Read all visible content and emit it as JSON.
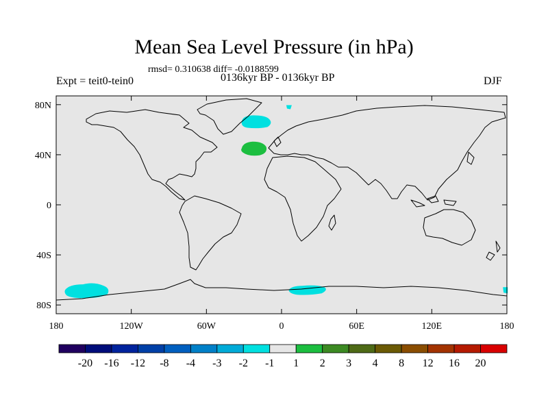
{
  "title": "Mean Sea Level Pressure (in hPa)",
  "stats": "rmsd= 0.310638 diff= -0.0188599",
  "left_label": "Expt = teit0-tein0",
  "center_label": "0136kyr BP - 0136kyr BP",
  "right_label": "DJF",
  "lat_ticks": [
    {
      "label": "80N",
      "lat": 80
    },
    {
      "label": "40N",
      "lat": 40
    },
    {
      "label": "0",
      "lat": 0
    },
    {
      "label": "40S",
      "lat": -40
    },
    {
      "label": "80S",
      "lat": -80
    }
  ],
  "lon_ticks": [
    {
      "label": "180",
      "lon": -180
    },
    {
      "label": "120W",
      "lon": -120
    },
    {
      "label": "60W",
      "lon": -60
    },
    {
      "label": "0",
      "lon": 0
    },
    {
      "label": "60E",
      "lon": 60
    },
    {
      "label": "120E",
      "lon": 120
    },
    {
      "label": "180",
      "lon": 180
    }
  ],
  "colorbar": {
    "colors": [
      "#20005f",
      "#000d7a",
      "#00239d",
      "#0040a7",
      "#005fbf",
      "#0080c8",
      "#00abd8",
      "#00e0e0",
      "#e6e6e6",
      "#1cbe40",
      "#3c8a23",
      "#4e6a16",
      "#6b5a05",
      "#8a4d00",
      "#a33300",
      "#b51a00",
      "#d90000"
    ],
    "labels": [
      "-20",
      "-16",
      "-12",
      "-8",
      "-4",
      "-3",
      "-2",
      "-1",
      "1",
      "2",
      "3",
      "4",
      "8",
      "12",
      "16",
      "20"
    ]
  },
  "anomalies": [
    {
      "name": "north-atlantic-low",
      "lon": -20,
      "lat": 66,
      "color": "#00e0e0"
    },
    {
      "name": "north-atlantic-high",
      "lon": -22,
      "lat": 45,
      "color": "#1cbe40"
    },
    {
      "name": "arctic-low-patch",
      "lon": 6,
      "lat": 78,
      "color": "#00e0e0"
    },
    {
      "name": "south-pacific-low",
      "lon": -152,
      "lat": -69,
      "color": "#00e0e0"
    },
    {
      "name": "south-atlantic-low",
      "lon": 20,
      "lat": -68,
      "color": "#00e0e0"
    },
    {
      "name": "dateline-low",
      "lon": 179,
      "lat": -68,
      "color": "#00e0e0"
    }
  ]
}
